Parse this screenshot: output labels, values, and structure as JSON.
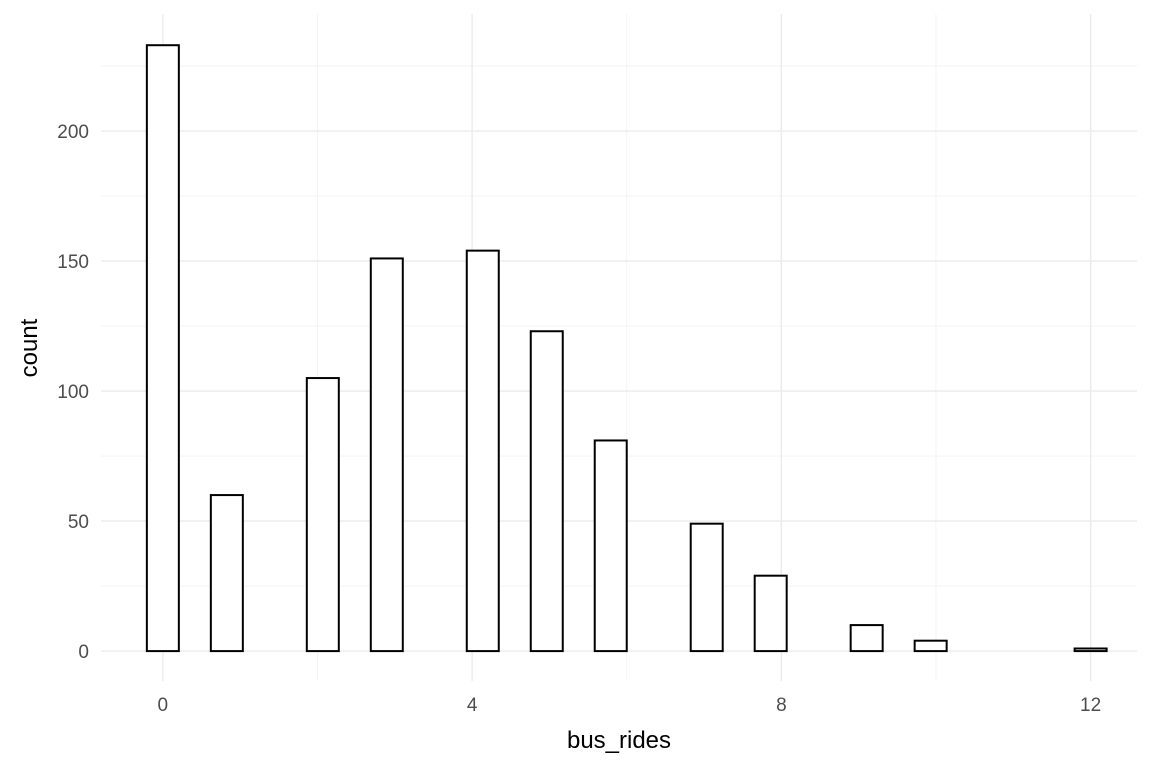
{
  "chart_data": {
    "type": "bar",
    "subtype": "histogram",
    "xlabel": "bus_rides",
    "ylabel": "count",
    "xlim": [
      -0.8,
      12.6
    ],
    "ylim": [
      -11.5,
      245
    ],
    "x_ticks": [
      0,
      4,
      8,
      12
    ],
    "x_tick_labels": [
      "0",
      "4",
      "8",
      "12"
    ],
    "y_ticks": [
      0,
      50,
      100,
      150,
      200
    ],
    "y_tick_labels": [
      "0",
      "50",
      "100",
      "150",
      "200"
    ],
    "bin_width": 0.4137931,
    "bins": [
      {
        "x": 0.0,
        "count": 233
      },
      {
        "x": 0.8275862,
        "count": 60
      },
      {
        "x": 1.2413793,
        "count": 0
      },
      {
        "x": 1.6551724,
        "count": 0
      },
      {
        "x": 2.0689655,
        "count": 105
      },
      {
        "x": 2.8965517,
        "count": 151
      },
      {
        "x": 3.3103448,
        "count": 0
      },
      {
        "x": 3.7241379,
        "count": 0
      },
      {
        "x": 4.137931,
        "count": 154
      },
      {
        "x": 4.9655172,
        "count": 123
      },
      {
        "x": 5.7931034,
        "count": 81
      },
      {
        "x": 6.2068966,
        "count": 0
      },
      {
        "x": 6.6206897,
        "count": 0
      },
      {
        "x": 7.0344828,
        "count": 49
      },
      {
        "x": 7.862069,
        "count": 29
      },
      {
        "x": 8.2758621,
        "count": 0
      },
      {
        "x": 8.6896552,
        "count": 0
      },
      {
        "x": 9.1034483,
        "count": 10
      },
      {
        "x": 9.9310345,
        "count": 4
      },
      {
        "x": 10.3448276,
        "count": 0
      },
      {
        "x": 10.7586207,
        "count": 0
      },
      {
        "x": 11.1724138,
        "count": 0
      },
      {
        "x": 11.5862069,
        "count": 0
      },
      {
        "x": 12.0,
        "count": 1
      }
    ],
    "grid": true,
    "legend": "none",
    "colors": {
      "bar_fill": "#ffffff",
      "bar_outline": "#000000",
      "grid": "#ebebeb",
      "tick_text": "#4d4d4d",
      "axis_title": "#000000"
    }
  }
}
